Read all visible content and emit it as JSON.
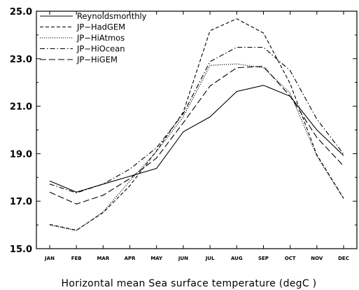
{
  "chart_data": {
    "type": "line",
    "title": "",
    "xlabel": "Horizontal mean Sea surface temperature (degC )",
    "ylabel": "",
    "categories": [
      "JAN",
      "FEB",
      "MAR",
      "APR",
      "MAY",
      "JUN",
      "JUL",
      "AUG",
      "SEP",
      "OCT",
      "NOV",
      "DEC"
    ],
    "ylim": [
      15.0,
      25.0
    ],
    "yticks": [
      "15.0",
      "17.0",
      "19.0",
      "21.0",
      "23.0",
      "25.0"
    ],
    "grid": false,
    "legend_position": "top-left",
    "series": [
      {
        "name": "Reynoldsmonthly",
        "dash": "solid",
        "color": "#000000",
        "values": [
          17.85,
          17.38,
          17.72,
          18.05,
          18.38,
          19.92,
          20.55,
          21.62,
          21.88,
          21.42,
          20.0,
          18.92
        ]
      },
      {
        "name": "JP−HadGEM",
        "dash": "dashed",
        "color": "#000000",
        "values": [
          16.02,
          15.78,
          16.52,
          17.65,
          19.12,
          20.75,
          24.18,
          24.68,
          24.08,
          21.95,
          18.95,
          17.12
        ]
      },
      {
        "name": "JP−HiAtmos",
        "dash": "dotted",
        "color": "#000000",
        "values": [
          16.0,
          15.76,
          16.55,
          17.85,
          19.1,
          20.55,
          22.72,
          22.78,
          22.62,
          21.55,
          18.9,
          17.1
        ]
      },
      {
        "name": "JP−HiOcean",
        "dash": "dashdot",
        "color": "#000000",
        "values": [
          17.72,
          17.35,
          17.72,
          18.35,
          19.25,
          20.68,
          22.88,
          23.48,
          23.48,
          22.5,
          20.45,
          18.98
        ]
      },
      {
        "name": "JP−HiGEM",
        "dash": "longdash",
        "color": "#000000",
        "values": [
          17.38,
          16.88,
          17.25,
          17.95,
          18.82,
          20.3,
          21.85,
          22.62,
          22.68,
          21.42,
          19.68,
          18.48
        ]
      }
    ]
  }
}
